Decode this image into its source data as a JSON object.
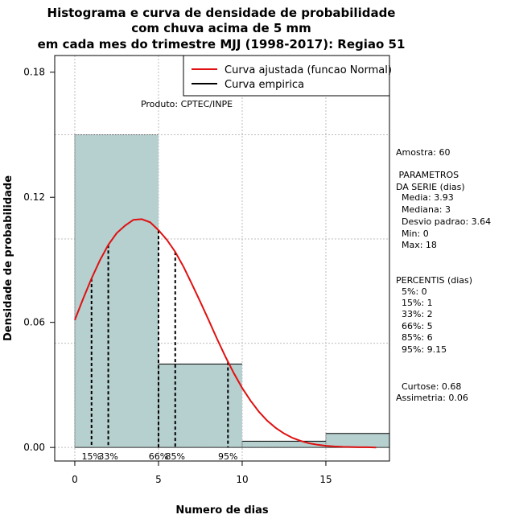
{
  "chart_data": {
    "type": "bar",
    "title_lines": [
      "Histograma e curva de densidade de probabilidade",
      "com chuva acima de 5 mm",
      "em cada mes do trimestre MJJ (1998-2017): Regiao 51"
    ],
    "xlabel": "Numero de dias",
    "ylabel": "Densidade de probabilidade",
    "xlim": [
      -1.2,
      18.8
    ],
    "ylim": [
      -0.0065,
      0.188
    ],
    "xticks": [
      0,
      5,
      10,
      15
    ],
    "yticks": [
      0.0,
      0.06,
      0.12,
      0.18
    ],
    "ytick_labels": [
      "0.00",
      "0.06",
      "0.12",
      "0.18"
    ],
    "grid": true,
    "bins": [
      {
        "x0": 0,
        "x1": 5,
        "density": 0.15
      },
      {
        "x0": 5,
        "x1": 10,
        "density": 0.04
      },
      {
        "x0": 10,
        "x1": 15,
        "density": 0.003
      },
      {
        "x0": 15,
        "x1": 20,
        "density": 0.0067
      }
    ],
    "bar_color": "#b6cfcf",
    "series": [
      {
        "name": "Curva ajustada (funcao Normal)",
        "color": "#e01010",
        "x": [
          0,
          0.5,
          1,
          1.5,
          2,
          2.5,
          3,
          3.5,
          4,
          4.5,
          5,
          5.5,
          6,
          6.5,
          7,
          7.5,
          8,
          8.5,
          9,
          9.5,
          10,
          10.5,
          11,
          11.5,
          12,
          12.5,
          13,
          13.5,
          14,
          14.5,
          15,
          15.5,
          16,
          16.5,
          17,
          17.5,
          18
        ],
        "y": [
          0.0612,
          0.0714,
          0.0811,
          0.0898,
          0.0972,
          0.1028,
          0.1064,
          0.1092,
          0.1095,
          0.108,
          0.1042,
          0.0996,
          0.0938,
          0.0866,
          0.0783,
          0.0698,
          0.061,
          0.052,
          0.0435,
          0.0356,
          0.0285,
          0.0224,
          0.0171,
          0.0128,
          0.0094,
          0.0067,
          0.0046,
          0.0031,
          0.002,
          0.0013,
          0.0008,
          0.0005,
          0.0003,
          0.0002,
          0.0001,
          0.0001,
          0.0
        ]
      },
      {
        "name": "Curva empirica",
        "color": "#000000"
      }
    ],
    "percentile_lines": [
      {
        "label": "15%",
        "x": 1
      },
      {
        "label": "33%",
        "x": 2
      },
      {
        "label": "66%",
        "x": 5
      },
      {
        "label": "85%",
        "x": 6
      },
      {
        "label": "95%",
        "x": 9.15
      }
    ],
    "annotation": "Produto: CPTEC/INPE",
    "stats_lines": [
      "Amostra: 60",
      " PARAMETROS",
      "DA SERIE (dias)",
      "  Media: 3.93",
      "  Mediana: 3",
      "  Desvio padrao: 3.64",
      "  Min: 0",
      "  Max: 18",
      "PERCENTIS (dias)",
      "  5%: 0",
      "  15%: 1",
      "  33%: 2",
      "  66%: 5",
      "  85%: 6",
      "  95%: 9.15",
      "  Curtose: 0.68",
      "Assimetria: 0.06"
    ]
  }
}
